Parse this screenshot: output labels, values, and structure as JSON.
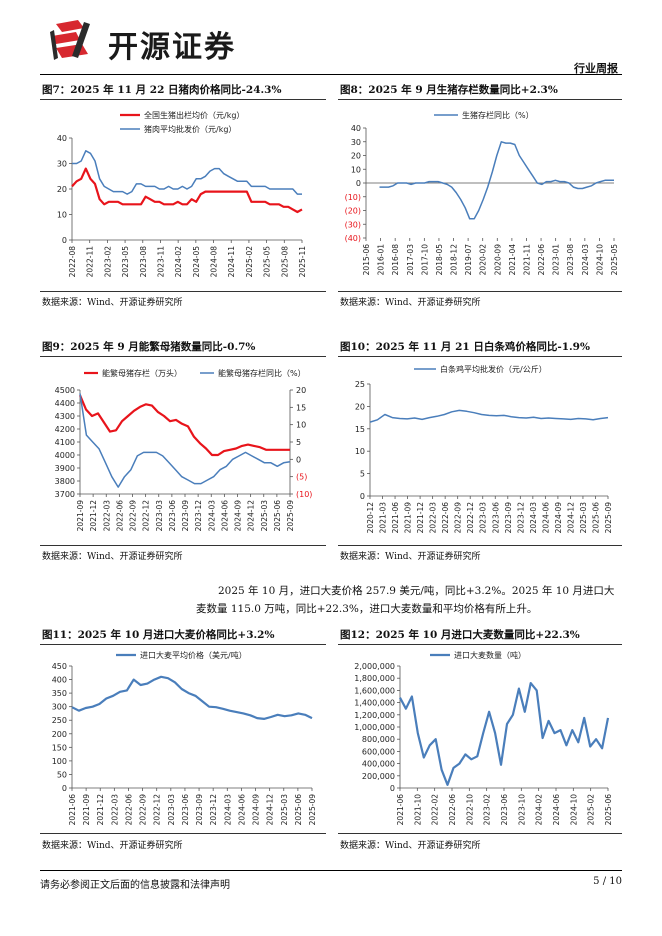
{
  "header": {
    "logo_text": "开源证券",
    "category": "行业周报"
  },
  "figures": [
    {
      "title": "图7：2025 年 11 月 22 日猪肉价格同比-24.3%",
      "source": "数据来源：Wind、开源证券研究所"
    },
    {
      "title": "图8：2025 年 9 月生猪存栏数量同比+2.3%",
      "source": "数据来源：Wind、开源证券研究所"
    },
    {
      "title": "图9：2025 年 9 月能繁母猪数量同比-0.7%",
      "source": "数据来源：Wind、开源证券研究所"
    },
    {
      "title": "图10：2025 年 11 月 21 日白条鸡价格同比-1.9%",
      "source": "数据来源：Wind、开源证券研究所"
    },
    {
      "title": "图11：2025 年 10 月进口大麦价格同比+3.2%",
      "source": "数据来源：Wind、开源证券研究所"
    },
    {
      "title": "图12：2025 年 10 月进口大麦数量同比+22.3%",
      "source": "数据来源：Wind、开源证券研究所"
    }
  ],
  "paragraph": {
    "line1": "2025 年 10 月，进口大麦价格 257.9 美元/吨，同比+3.2%。2025 年 10 月进口大",
    "line2": "麦数量 115.0 万吨，同比+22.3%，进口大麦数量和平均价格有所上升。"
  },
  "footer": {
    "disclaimer": "请务必参阅正文后面的信息披露和法律声明",
    "page": "5 / 10"
  },
  "colors": {
    "red": "#e8141b",
    "blue": "#4a7ebb"
  },
  "chart_data": [
    {
      "id": "fig7",
      "type": "line",
      "ylim": [
        0,
        40
      ],
      "yticks": [
        "0",
        "10",
        "20",
        "30",
        "40"
      ],
      "xticks": [
        "2022-08",
        "2022-11",
        "2023-02",
        "2023-05",
        "2023-08",
        "2023-11",
        "2024-02",
        "2024-05",
        "2024-08",
        "2024-11",
        "2025-02",
        "2025-05",
        "2025-08",
        "2025-11"
      ],
      "series": [
        {
          "name": "全国生猪出栏均价（元/kg）",
          "color": "#e8141b",
          "width": 2.2,
          "values": [
            21,
            23,
            24,
            28,
            24,
            22,
            16,
            14,
            15,
            15,
            15,
            14,
            14,
            14,
            14,
            14,
            17,
            16,
            15,
            15,
            14,
            14,
            14,
            15,
            14,
            14,
            16,
            15,
            18,
            19,
            19,
            19,
            19,
            19,
            19,
            19,
            19,
            19,
            19,
            15,
            15,
            15,
            15,
            14,
            14,
            14,
            13,
            13,
            12,
            11,
            12
          ]
        },
        {
          "name": "猪肉平均批发价（元/kg）",
          "color": "#4a7ebb",
          "width": 1.5,
          "values": [
            30,
            30,
            31,
            35,
            34,
            31,
            24,
            21,
            20,
            19,
            19,
            19,
            18,
            19,
            22,
            22,
            21,
            21,
            21,
            20,
            20,
            21,
            20,
            20,
            21,
            20,
            21,
            24,
            24,
            25,
            27,
            28,
            28,
            26,
            25,
            24,
            23,
            23,
            23,
            21,
            21,
            21,
            21,
            20,
            20,
            20,
            20,
            20,
            20,
            18,
            18
          ]
        }
      ]
    },
    {
      "id": "fig8",
      "type": "line",
      "ylim": [
        -40,
        40
      ],
      "yticks": [
        "(40)",
        "(30)",
        "(20)",
        "(10)",
        "0",
        "10",
        "20",
        "30",
        "40"
      ],
      "xticks": [
        "2015-06",
        "2016-01",
        "2016-08",
        "2017-03",
        "2017-10",
        "2018-05",
        "2018-12",
        "2019-07",
        "2020-02",
        "2020-09",
        "2021-04",
        "2021-11",
        "2022-06",
        "2023-01",
        "2023-08",
        "2024-03",
        "2024-10",
        "2025-05"
      ],
      "series": [
        {
          "name": "生猪存栏同比（%）",
          "color": "#4a7ebb",
          "width": 1.5,
          "values": [
            null,
            null,
            null,
            -3,
            -3,
            -3,
            -2,
            0,
            0,
            0,
            -1,
            0,
            0,
            0,
            1,
            1,
            1,
            0,
            -1,
            -3,
            -7,
            -12,
            -18,
            -26,
            -26,
            -20,
            -12,
            -3,
            8,
            20,
            30,
            29,
            29,
            28,
            20,
            15,
            10,
            5,
            0,
            -1,
            1,
            1,
            2,
            1,
            1,
            0,
            -3,
            -4,
            -4,
            -3,
            -2,
            0,
            1,
            2,
            2,
            2
          ]
        }
      ]
    },
    {
      "id": "fig9",
      "type": "line",
      "ylim_left": [
        3700,
        4500
      ],
      "ylim_right": [
        -10,
        20
      ],
      "yticks_left": [
        "3700",
        "3800",
        "3900",
        "4000",
        "4100",
        "4200",
        "4300",
        "4400",
        "4500"
      ],
      "yticks_right": [
        "(10)",
        "(5)",
        "0",
        "5",
        "10",
        "15",
        "20"
      ],
      "xticks": [
        "2021-09",
        "2021-12",
        "2022-03",
        "2022-06",
        "2022-09",
        "2022-12",
        "2023-03",
        "2023-06",
        "2023-09",
        "2023-12",
        "2024-03",
        "2024-06",
        "2024-09",
        "2024-12",
        "2025-03",
        "2025-06",
        "2025-09"
      ],
      "series": [
        {
          "name": "能繁母猪存栏（万头）",
          "color": "#e8141b",
          "width": 2.2,
          "axis": "left",
          "values": [
            4460,
            4350,
            4300,
            4320,
            4250,
            4180,
            4190,
            4260,
            4300,
            4340,
            4370,
            4390,
            4380,
            4330,
            4300,
            4260,
            4270,
            4240,
            4220,
            4140,
            4090,
            4050,
            4000,
            4000,
            4030,
            4040,
            4050,
            4070,
            4080,
            4070,
            4060,
            4040,
            4040,
            4040,
            4040,
            4040
          ]
        },
        {
          "name": "能繁母猪存栏同比（%）",
          "color": "#4a7ebb",
          "width": 1.5,
          "axis": "right",
          "values": [
            19,
            7,
            5,
            3,
            -1,
            -5,
            -8,
            -5,
            -3,
            1,
            2,
            2,
            2,
            1,
            -1,
            -3,
            -5,
            -6,
            -7,
            -7,
            -6,
            -5,
            -3,
            -2,
            0,
            1,
            2,
            1,
            0,
            -1,
            -1,
            -2,
            -1,
            -0.7
          ]
        }
      ]
    },
    {
      "id": "fig10",
      "type": "line",
      "ylim": [
        0,
        25
      ],
      "yticks": [
        "0",
        "5",
        "10",
        "15",
        "20",
        "25"
      ],
      "xticks": [
        "2020-12",
        "2021-03",
        "2021-06",
        "2021-09",
        "2021-12",
        "2022-03",
        "2022-06",
        "2022-09",
        "2022-12",
        "2023-03",
        "2023-06",
        "2023-09",
        "2023-12",
        "2024-03",
        "2024-06",
        "2024-09",
        "2024-12",
        "2025-03",
        "2025-06",
        "2025-09"
      ],
      "series": [
        {
          "name": "白条鸡平均批发价（元/公斤）",
          "color": "#4a7ebb",
          "width": 1.5,
          "values": [
            16.5,
            17,
            18.2,
            17.5,
            17.3,
            17.2,
            17.4,
            17.1,
            17.5,
            17.8,
            18.2,
            18.8,
            19.1,
            18.9,
            18.6,
            18.2,
            18,
            17.9,
            18,
            17.7,
            17.5,
            17.4,
            17.6,
            17.3,
            17.4,
            17.3,
            17.2,
            17.1,
            17.3,
            17.2,
            17,
            17.3,
            17.5
          ]
        }
      ]
    },
    {
      "id": "fig11",
      "type": "line",
      "ylim": [
        0,
        450
      ],
      "yticks": [
        "0",
        "50",
        "100",
        "150",
        "200",
        "250",
        "300",
        "350",
        "400",
        "450"
      ],
      "xticks": [
        "2021-06",
        "2021-09",
        "2021-12",
        "2022-03",
        "2022-06",
        "2022-09",
        "2022-12",
        "2023-03",
        "2023-06",
        "2023-09",
        "2023-12",
        "2024-03",
        "2024-06",
        "2024-09",
        "2024-12",
        "2025-03",
        "2025-06",
        "2025-09"
      ],
      "series": [
        {
          "name": "进口大麦平均价格（美元/吨）",
          "color": "#4a7ebb",
          "width": 2.2,
          "values": [
            298,
            285,
            295,
            300,
            310,
            330,
            340,
            355,
            360,
            400,
            380,
            385,
            400,
            410,
            405,
            390,
            365,
            350,
            340,
            320,
            300,
            298,
            292,
            285,
            280,
            275,
            268,
            258,
            255,
            262,
            270,
            265,
            268,
            275,
            270,
            257.9
          ]
        }
      ]
    },
    {
      "id": "fig12",
      "type": "line",
      "ylim": [
        0,
        2000000
      ],
      "yticks": [
        "0",
        "200,000",
        "400,000",
        "600,000",
        "800,000",
        "1,000,000",
        "1,200,000",
        "1,400,000",
        "1,600,000",
        "1,800,000",
        "2,000,000"
      ],
      "xticks": [
        "2021-06",
        "2021-10",
        "2022-02",
        "2022-06",
        "2022-10",
        "2023-02",
        "2023-06",
        "2023-10",
        "2024-02",
        "2024-06",
        "2024-10",
        "2025-02",
        "2025-06"
      ],
      "series": [
        {
          "name": "进口大麦数量（吨）",
          "color": "#4a7ebb",
          "width": 2.2,
          "values": [
            1480000,
            1300000,
            1500000,
            900000,
            500000,
            700000,
            800000,
            300000,
            50000,
            330000,
            400000,
            550000,
            470000,
            520000,
            900000,
            1250000,
            900000,
            380000,
            1050000,
            1200000,
            1630000,
            1250000,
            1720000,
            1600000,
            820000,
            1100000,
            900000,
            950000,
            700000,
            950000,
            750000,
            1150000,
            680000,
            800000,
            650000,
            1150000
          ]
        }
      ]
    }
  ]
}
